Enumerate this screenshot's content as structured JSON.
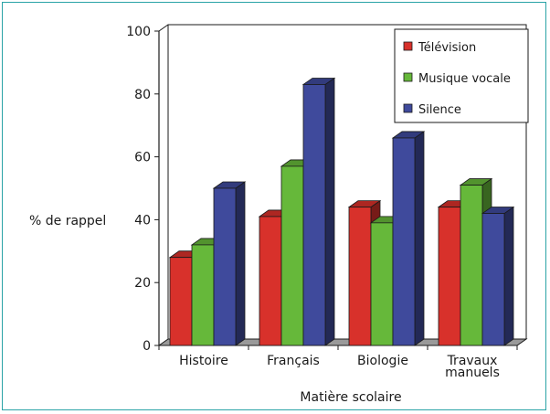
{
  "chart_data": {
    "type": "bar",
    "title": "",
    "xlabel": "Matière scolaire",
    "ylabel": "% de rappel",
    "ylim": [
      0,
      100
    ],
    "yticks": [
      0,
      20,
      40,
      60,
      80,
      100
    ],
    "categories": [
      "Histoire",
      "Français",
      "Biologie",
      "Travaux manuels"
    ],
    "category_lines": [
      [
        "Histoire"
      ],
      [
        "Français"
      ],
      [
        "Biologie"
      ],
      [
        "Travaux",
        "manuels"
      ]
    ],
    "series": [
      {
        "name": "Télévision",
        "values": [
          28,
          41,
          44,
          44
        ],
        "color": "#d8312b"
      },
      {
        "name": "Musique vocale",
        "values": [
          32,
          57,
          39,
          51
        ],
        "color": "#66b83a"
      },
      {
        "name": "Silence",
        "values": [
          50,
          83,
          66,
          42
        ],
        "color": "#3f4a9c"
      }
    ],
    "legend_position": "top-right",
    "grid": false,
    "style": "3d"
  },
  "colors": {
    "frame": "#2aa3a6",
    "axis": "#1a1a1a",
    "floor": "#9a9a9a"
  }
}
